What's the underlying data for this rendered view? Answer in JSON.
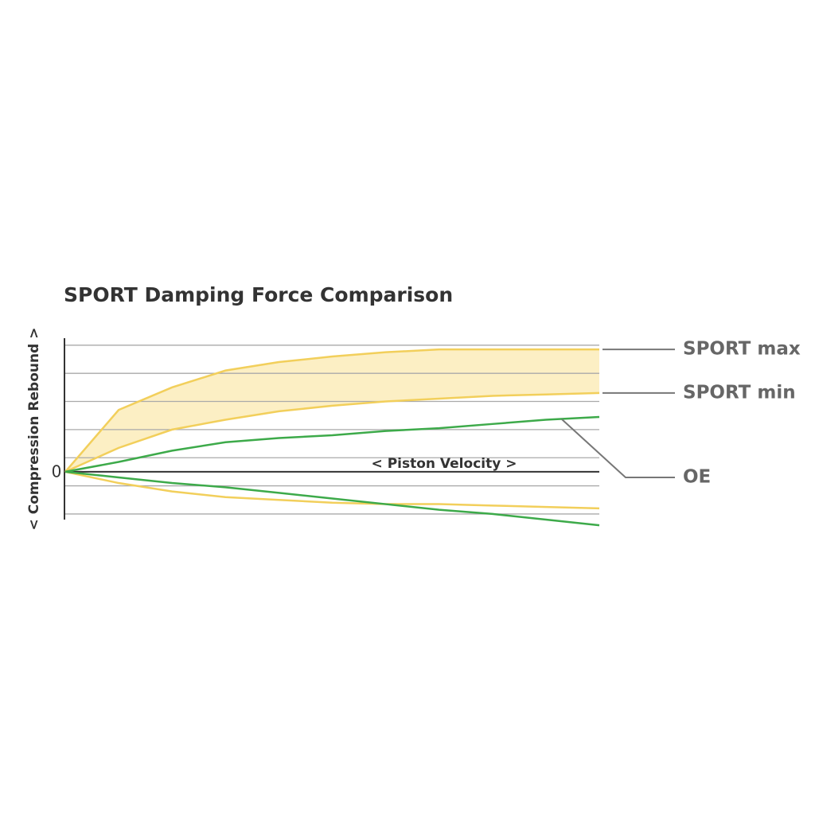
{
  "chart_data": {
    "type": "line",
    "title": "SPORT Damping Force Comparison",
    "x_label": "< Piston Velocity >",
    "y_label": "< Compression Rebound >",
    "x": [
      0,
      1,
      2,
      3,
      4,
      5,
      6,
      7,
      8,
      9,
      10
    ],
    "xlim": [
      0,
      10
    ],
    "ylim": [
      -3.4,
      9.5
    ],
    "yticks": [
      0
    ],
    "ygrid": [
      -3,
      -1,
      1,
      3,
      5,
      7,
      9
    ],
    "grid": true,
    "band_color": "#fcefc4",
    "series": [
      {
        "name": "SPORT max",
        "color": "#f2cf5b",
        "values": [
          0,
          4.4,
          6.0,
          7.2,
          7.8,
          8.2,
          8.5,
          8.7,
          8.7,
          8.7,
          8.7
        ]
      },
      {
        "name": "SPORT min",
        "color": "#f2cf5b",
        "values": [
          0,
          1.7,
          3.0,
          3.7,
          4.3,
          4.7,
          5.0,
          5.2,
          5.4,
          5.5,
          5.6
        ]
      },
      {
        "name": "OE",
        "color": "#3daa4a",
        "values": [
          0,
          0.7,
          1.5,
          2.1,
          2.4,
          2.6,
          2.9,
          3.1,
          3.4,
          3.7,
          3.9
        ]
      }
    ],
    "compression_series": [
      {
        "color": "#f2cf5b",
        "values": [
          0,
          -0.8,
          -1.4,
          -1.8,
          -2.0,
          -2.2,
          -2.3,
          -2.3,
          -2.4,
          -2.5,
          -2.6
        ]
      },
      {
        "color": "#3daa4a",
        "values": [
          0,
          -0.4,
          -0.8,
          -1.1,
          -1.5,
          -1.9,
          -2.3,
          -2.7,
          -3.0,
          -3.4,
          -3.8
        ]
      }
    ]
  }
}
